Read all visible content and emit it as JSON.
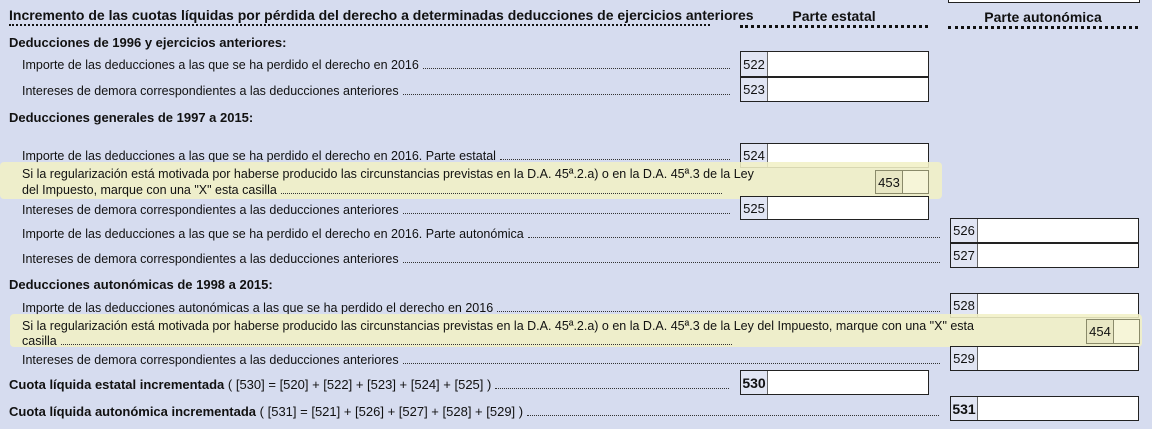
{
  "header": {
    "title": "Incremento de las cuotas líquidas por pérdida del derecho a determinadas deducciones de ejercicios anteriores",
    "col_estatal": "Parte estatal",
    "col_autonomica": "Parte autonómica"
  },
  "sections": {
    "s1": "Deducciones de 1996 y ejercicios anteriores:",
    "s2": "Deducciones generales de 1997 a 2015:",
    "s3": "Deducciones autonómicas de 1998 a 2015:"
  },
  "rows": {
    "r522": {
      "label": "Importe de las deducciones a las que se ha perdido el derecho en 2016",
      "box": "522",
      "value": ""
    },
    "r523": {
      "label": "Intereses de demora correspondientes a las deducciones anteriores",
      "box": "523",
      "value": ""
    },
    "r524": {
      "label": "Importe de las deducciones a las que se ha perdido el derecho en 2016. Parte estatal",
      "box": "524",
      "value": ""
    },
    "r453": {
      "line1": "Si la regularización está motivada por haberse producido las circunstancias previstas en la D.A. 45ª.2.a) o en la D.A. 45ª.3 de la Ley",
      "line2": "del Impuesto, marque con una \"X\" esta casilla",
      "box": "453",
      "value": ""
    },
    "r525": {
      "label": "Intereses de demora correspondientes a las deducciones anteriores",
      "box": "525",
      "value": ""
    },
    "r526": {
      "label": "Importe de las deducciones a las que se ha perdido el derecho en 2016. Parte autonómica",
      "box": "526",
      "value": ""
    },
    "r527": {
      "label": "Intereses de demora correspondientes a las deducciones anteriores",
      "box": "527",
      "value": ""
    },
    "r528": {
      "label": "Importe de las deducciones autonómicas a las que se ha perdido el derecho en 2016",
      "box": "528",
      "value": ""
    },
    "r454": {
      "line1": "Si la regularización está motivada por haberse producido las circunstancias previstas en la D.A. 45ª.2.a) o en la D.A. 45ª.3 de la Ley del Impuesto, marque con una \"X\" esta",
      "line2": "casilla",
      "box": "454",
      "value": ""
    },
    "r529": {
      "label": "Intereses de demora correspondientes a las deducciones anteriores",
      "box": "529",
      "value": ""
    },
    "r530": {
      "label": "Cuota líquida estatal incrementada",
      "formula": " ( [530] = [520] + [522] + [523] + [524] + [525] )",
      "box": "530",
      "value": ""
    },
    "r531": {
      "label": "Cuota líquida autonómica incrementada",
      "formula": " ( [531] = [521] + [526] + [527] + [528] + [529] )",
      "box": "531",
      "value": ""
    }
  }
}
